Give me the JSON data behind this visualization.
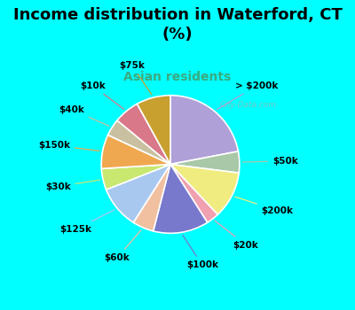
{
  "title": "Income distribution in Waterford, CT\n(%)",
  "subtitle": "Asian residents",
  "background_outer": "#00FFFF",
  "background_pie_area": "#d8f0e8",
  "labels": [
    "> $200k",
    "$50k",
    "$200k",
    "$20k",
    "$100k",
    "$60k",
    "$125k",
    "$30k",
    "$150k",
    "$40k",
    "$10k",
    "$75k"
  ],
  "sizes": [
    22,
    5,
    11,
    3,
    13,
    5,
    10,
    5,
    8,
    4,
    6,
    8
  ],
  "colors": [
    "#b0a0d8",
    "#a8c8a8",
    "#f0ec80",
    "#f0a0b0",
    "#7878cc",
    "#f0c0a0",
    "#a8c8f0",
    "#c8e870",
    "#f0a850",
    "#c8c0a0",
    "#d87888",
    "#c8a030"
  ],
  "label_fontsize": 7.5,
  "title_fontsize": 13,
  "subtitle_fontsize": 10,
  "subtitle_color": "#3aaa80",
  "watermark": "City-Data.com"
}
